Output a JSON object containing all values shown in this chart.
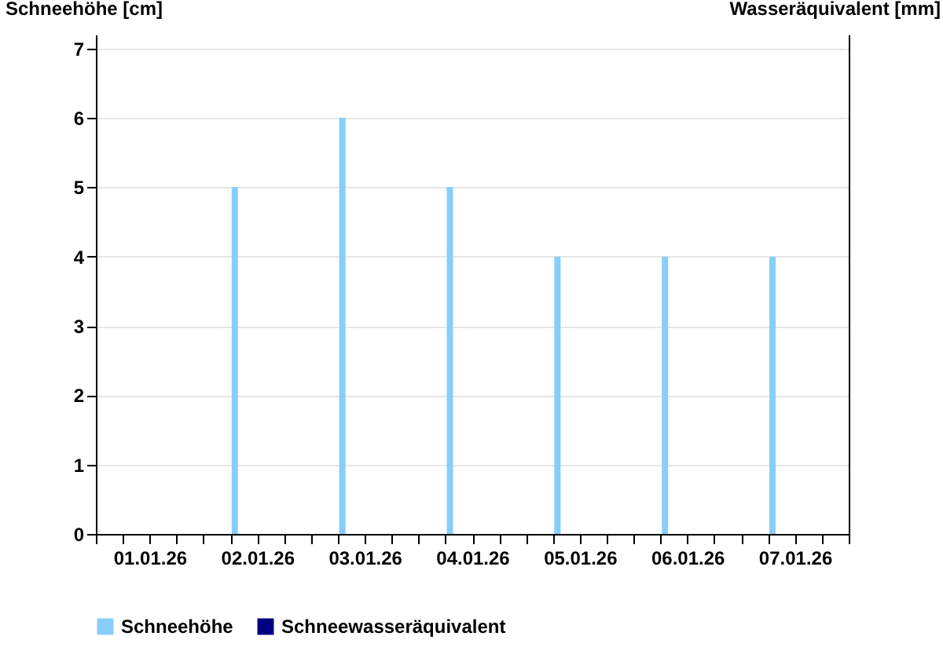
{
  "chart_data": {
    "type": "bar",
    "ylabel": "Schneehöhe [cm]",
    "y2label": "Wasseräquivalent [mm]",
    "x": [
      "--01-02T07:00",
      "--01-03T07:00",
      "--01-04T07:00",
      "--01-05T07:00",
      "--01-06T07:00",
      "--01-07T07:00"
    ],
    "series": [
      {
        "name": "Schneehöhe",
        "color": "#87cefa",
        "values": [
          5,
          6,
          5,
          4,
          4,
          4
        ]
      },
      {
        "name": "Schneewasseräquivalent",
        "color": "#000080",
        "values": [
          null,
          null,
          null,
          null,
          null,
          null
        ],
        "axis": "y2"
      }
    ],
    "xlim": [
      "--01-01T00:00",
      "--01-08T00:00"
    ],
    "xticks": [
      {
        "value": "--01-01T00:00",
        "label": null
      },
      {
        "value": "--01-01T06:00",
        "label": null
      },
      {
        "value": "--01-01T12:00",
        "label": "01.01.26"
      },
      {
        "value": "--01-01T18:00",
        "label": null
      },
      {
        "value": "--01-02T00:00",
        "label": null
      },
      {
        "value": "--01-02T06:00",
        "label": null
      },
      {
        "value": "--01-02T12:00",
        "label": "02.01.26"
      },
      {
        "value": "--01-02T18:00",
        "label": null
      },
      {
        "value": "--01-03T00:00",
        "label": null
      },
      {
        "value": "--01-03T06:00",
        "label": null
      },
      {
        "value": "--01-03T12:00",
        "label": "03.01.26"
      },
      {
        "value": "--01-03T18:00",
        "label": null
      },
      {
        "value": "--01-04T00:00",
        "label": null
      },
      {
        "value": "--01-04T06:00",
        "label": null
      },
      {
        "value": "--01-04T12:00",
        "label": "04.01.26"
      },
      {
        "value": "--01-04T18:00",
        "label": null
      },
      {
        "value": "--01-05T00:00",
        "label": null
      },
      {
        "value": "--01-05T06:00",
        "label": null
      },
      {
        "value": "--01-05T12:00",
        "label": "05.01.26"
      },
      {
        "value": "--01-05T18:00",
        "label": null
      },
      {
        "value": "--01-06T00:00",
        "label": null
      },
      {
        "value": "--01-06T06:00",
        "label": null
      },
      {
        "value": "--01-06T12:00",
        "label": "06.01.26"
      },
      {
        "value": "--01-06T18:00",
        "label": null
      },
      {
        "value": "--01-07T00:00",
        "label": null
      },
      {
        "value": "--01-07T06:00",
        "label": null
      },
      {
        "value": "--01-07T12:00",
        "label": "07.01.26"
      },
      {
        "value": "--01-07T18:00",
        "label": null
      },
      {
        "value": "--01-08T00:00",
        "label": null
      }
    ],
    "ylim": [
      0,
      7.2
    ],
    "yticks": [
      0,
      1,
      2,
      3,
      4,
      5,
      6,
      7
    ],
    "grid": "y",
    "legend": "bottom left"
  }
}
